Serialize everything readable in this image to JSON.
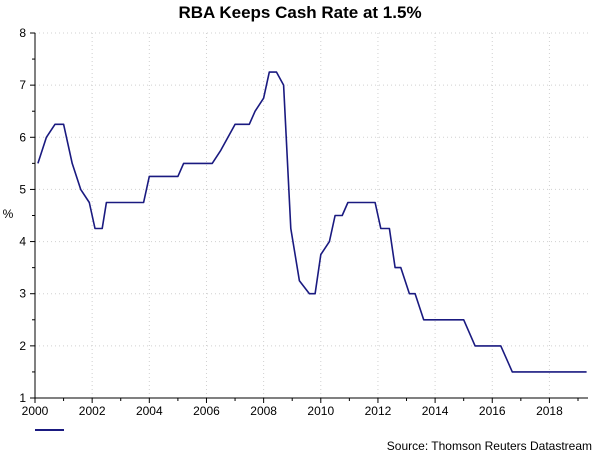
{
  "chart_data": {
    "type": "line",
    "title": "RBA Keeps Cash Rate at 1.5%",
    "ylabel": "%",
    "xlabel": "",
    "xlim": [
      2000,
      2019.35
    ],
    "ylim": [
      1,
      8
    ],
    "x_ticks": [
      2000,
      2002,
      2004,
      2006,
      2008,
      2010,
      2012,
      2014,
      2016,
      2018
    ],
    "x_tick_labels": [
      "2000",
      "2002",
      "2004",
      "2006",
      "2008",
      "2010",
      "2012",
      "2014",
      "2016",
      "2018"
    ],
    "y_ticks": [
      1,
      2,
      3,
      4,
      5,
      6,
      7,
      8
    ],
    "y_tick_labels": [
      "1",
      "2",
      "3",
      "4",
      "5",
      "6",
      "7",
      "8"
    ],
    "grid": true,
    "series": [
      {
        "name": "",
        "color": "#1a1a80",
        "x": [
          2000.1,
          2000.4,
          2000.7,
          2001.0,
          2001.3,
          2001.6,
          2001.9,
          2002.1,
          2002.35,
          2002.5,
          2003.8,
          2004.0,
          2005.0,
          2005.2,
          2006.2,
          2006.5,
          2007.0,
          2007.5,
          2007.7,
          2008.0,
          2008.2,
          2008.45,
          2008.7,
          2008.95,
          2009.25,
          2009.6,
          2009.8,
          2010.0,
          2010.3,
          2010.5,
          2010.75,
          2010.95,
          2011.9,
          2012.1,
          2012.4,
          2012.6,
          2012.8,
          2013.1,
          2013.3,
          2013.6,
          2015.0,
          2015.4,
          2016.3,
          2016.7,
          2019.3
        ],
        "y": [
          5.5,
          6.0,
          6.25,
          6.25,
          5.5,
          5.0,
          4.75,
          4.25,
          4.25,
          4.75,
          4.75,
          5.25,
          5.25,
          5.5,
          5.5,
          5.75,
          6.25,
          6.25,
          6.5,
          6.75,
          7.25,
          7.25,
          7.0,
          4.25,
          3.25,
          3.0,
          3.0,
          3.75,
          4.0,
          4.5,
          4.5,
          4.75,
          4.75,
          4.25,
          4.25,
          3.5,
          3.5,
          3.0,
          3.0,
          2.5,
          2.5,
          2.0,
          2.0,
          1.5,
          1.5
        ]
      }
    ]
  },
  "source": "Source: Thomson Reuters Datastream"
}
